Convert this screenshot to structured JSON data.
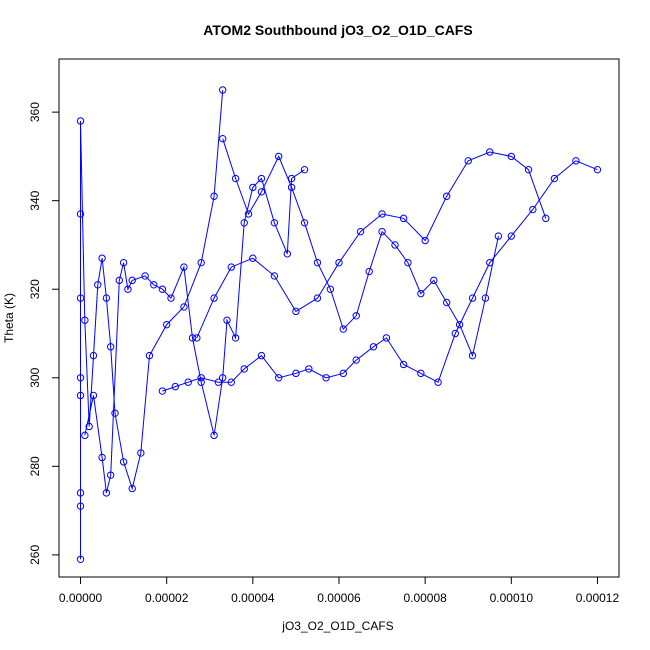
{
  "chart_data": {
    "type": "scatter",
    "title": "ATOM2 Southbound jO3_O2_O1D_CAFS",
    "xlabel": "jO3_O2_O1D_CAFS",
    "ylabel": "Theta (K)",
    "xlim": [
      -5e-06,
      0.000125
    ],
    "ylim": [
      255,
      372
    ],
    "x_ticks": [
      0,
      2e-05,
      4e-05,
      6e-05,
      8e-05,
      0.0001,
      0.00012
    ],
    "x_tick_labels": [
      "0.00000",
      "0.00002",
      "0.00004",
      "0.00006",
      "0.00008",
      "0.00010",
      "0.00012"
    ],
    "y_ticks": [
      260,
      280,
      300,
      320,
      340,
      360
    ],
    "y_tick_labels": [
      "260",
      "280",
      "300",
      "320",
      "340",
      "360"
    ],
    "grid": false,
    "legend": "none",
    "marker": "open-circle",
    "connected": true,
    "color": "#0000ff",
    "series": [
      {
        "x": [
          0.0,
          0.0,
          0.0,
          0.0,
          0.0,
          0.0,
          0.0,
          0.0,
          1e-06,
          2e-06,
          3e-06,
          4e-06,
          5e-06,
          6e-06,
          7e-06,
          8e-06,
          1e-05,
          1.2e-05,
          1.4e-05,
          1.6e-05,
          2e-05,
          2.4e-05,
          2.8e-05,
          3.1e-05,
          3.3e-05
        ],
        "y": [
          259,
          271,
          274,
          296,
          300,
          318,
          337,
          358,
          313,
          289,
          305,
          321,
          327,
          318,
          307,
          292,
          281,
          275,
          283,
          305,
          312,
          316,
          326,
          341,
          365
        ]
      },
      {
        "x": [
          1e-06,
          3e-06,
          5e-06,
          6e-06,
          7e-06,
          9e-06,
          1e-05,
          1.1e-05,
          1.2e-05,
          1.5e-05,
          1.7e-05,
          1.9e-05,
          2.1e-05,
          2.4e-05,
          2.6e-05,
          2.8e-05,
          3.1e-05,
          3.3e-05,
          3.4e-05,
          3.6e-05,
          3.8e-05,
          4e-05,
          4.2e-05,
          4.5e-05,
          4.8e-05,
          4.9e-05,
          5.2e-05
        ],
        "y": [
          287,
          296,
          282,
          274,
          278,
          322,
          326,
          320,
          322,
          323,
          321,
          320,
          318,
          325,
          309,
          299,
          287,
          300,
          313,
          309,
          335,
          343,
          345,
          335,
          328,
          345,
          347
        ]
      },
      {
        "x": [
          1.9e-05,
          2.2e-05,
          2.5e-05,
          2.8e-05,
          3.2e-05,
          3.5e-05,
          3.8e-05,
          4.2e-05,
          4.6e-05,
          5e-05,
          5.3e-05,
          5.7e-05,
          6.1e-05,
          6.4e-05,
          6.8e-05,
          7.1e-05,
          7.5e-05,
          7.9e-05,
          8.3e-05,
          8.7e-05,
          9.1e-05,
          9.5e-05,
          0.0001,
          0.000105,
          0.00011,
          0.000115,
          0.00012
        ],
        "y": [
          297,
          298,
          299,
          300,
          299,
          299,
          302,
          305,
          300,
          301,
          302,
          300,
          301,
          304,
          307,
          309,
          303,
          301,
          299,
          310,
          318,
          326,
          332,
          338,
          345,
          349,
          347
        ]
      },
      {
        "x": [
          2.7e-05,
          3.1e-05,
          3.5e-05,
          4e-05,
          4.5e-05,
          5e-05,
          5.5e-05,
          6e-05,
          6.5e-05,
          7e-05,
          7.5e-05,
          8e-05,
          8.5e-05,
          9e-05,
          9.5e-05,
          0.0001,
          0.000104,
          0.000108
        ],
        "y": [
          309,
          318,
          325,
          327,
          323,
          315,
          318,
          326,
          333,
          337,
          336,
          331,
          341,
          349,
          351,
          350,
          347,
          336
        ]
      },
      {
        "x": [
          3.3e-05,
          3.6e-05,
          3.9e-05,
          4.2e-05,
          4.6e-05,
          4.9e-05,
          5.2e-05,
          5.5e-05,
          5.8e-05,
          6.1e-05,
          6.4e-05,
          6.7e-05,
          7e-05,
          7.3e-05,
          7.6e-05,
          7.9e-05,
          8.2e-05,
          8.5e-05,
          8.8e-05,
          9.1e-05,
          9.4e-05,
          9.7e-05
        ],
        "y": [
          354,
          345,
          337,
          342,
          350,
          343,
          335,
          326,
          320,
          311,
          314,
          324,
          333,
          330,
          326,
          319,
          322,
          317,
          312,
          305,
          318,
          332
        ]
      }
    ]
  }
}
